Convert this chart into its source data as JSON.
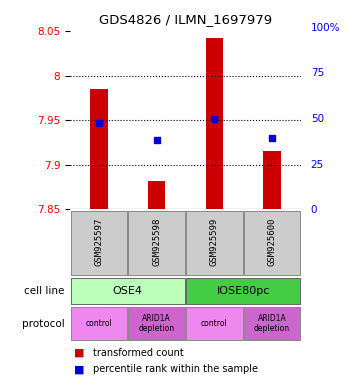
{
  "title": "GDS4826 / ILMN_1697979",
  "samples": [
    "GSM925597",
    "GSM925598",
    "GSM925599",
    "GSM925600"
  ],
  "bar_values": [
    7.985,
    7.882,
    8.043,
    7.915
  ],
  "bar_baseline": 7.85,
  "blue_values": [
    7.947,
    7.928,
    7.951,
    7.93
  ],
  "ylim": [
    7.85,
    8.055
  ],
  "yticks_left": [
    7.85,
    7.9,
    7.95,
    8.0,
    8.05
  ],
  "yticks_right": [
    0,
    25,
    50,
    75,
    100
  ],
  "ytick_labels_left": [
    "7.85",
    "7.9",
    "7.95",
    "8",
    "8.05"
  ],
  "ytick_labels_right": [
    "0",
    "25",
    "50",
    "75",
    "100%"
  ],
  "hlines": [
    7.9,
    7.95,
    8.0
  ],
  "bar_color": "#cc0000",
  "blue_color": "#0000cc",
  "cell_line_labels": [
    "OSE4",
    "IOSE80pc"
  ],
  "cell_line_spans": [
    [
      0,
      2
    ],
    [
      2,
      4
    ]
  ],
  "cell_line_colors": [
    "#bbffbb",
    "#44cc44"
  ],
  "protocol_labels": [
    "control",
    "ARID1A\ndepletion",
    "control",
    "ARID1A\ndepletion"
  ],
  "protocol_colors": [
    "#ee88ee",
    "#cc66cc",
    "#ee88ee",
    "#cc66cc"
  ],
  "legend_red": "transformed count",
  "legend_blue": "percentile rank within the sample",
  "xlabel_cell": "cell line",
  "xlabel_prot": "protocol",
  "gsm_bg": "#cccccc"
}
